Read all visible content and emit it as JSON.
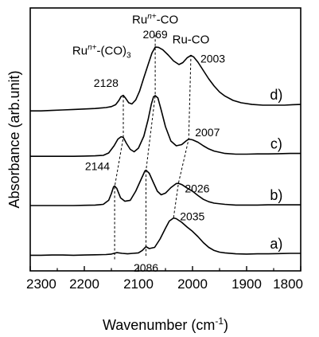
{
  "chart_data": {
    "type": "line",
    "xlabel": "Wavenumber (cm",
    "xlabel_sup": "-1",
    "xlabel_suffix": ")",
    "ylabel": "Absorbance (arb.unit)",
    "xlim": [
      2300,
      1800
    ],
    "ylim": [
      0,
      1
    ],
    "x_reversed": true,
    "yticks_shown": false,
    "xticks": [
      2300,
      2200,
      2100,
      2000,
      1900,
      1800
    ],
    "xtick_labels": [
      "2300",
      "2200",
      "2100",
      "2000",
      "1900",
      "1800"
    ],
    "series": [
      {
        "name": "a)",
        "points": [
          [
            2300,
            0.032
          ],
          [
            2280,
            0.032
          ],
          [
            2260,
            0.033
          ],
          [
            2240,
            0.033
          ],
          [
            2220,
            0.032
          ],
          [
            2200,
            0.033
          ],
          [
            2180,
            0.034
          ],
          [
            2160,
            0.035
          ],
          [
            2150,
            0.037
          ],
          [
            2140,
            0.043
          ],
          [
            2130,
            0.04
          ],
          [
            2120,
            0.038
          ],
          [
            2110,
            0.04
          ],
          [
            2100,
            0.042
          ],
          [
            2093,
            0.052
          ],
          [
            2086,
            0.068
          ],
          [
            2080,
            0.06
          ],
          [
            2070,
            0.065
          ],
          [
            2060,
            0.1
          ],
          [
            2050,
            0.145
          ],
          [
            2043,
            0.175
          ],
          [
            2035,
            0.188
          ],
          [
            2030,
            0.185
          ],
          [
            2020,
            0.17
          ],
          [
            2010,
            0.15
          ],
          [
            2000,
            0.132
          ],
          [
            1990,
            0.11
          ],
          [
            1980,
            0.085
          ],
          [
            1970,
            0.065
          ],
          [
            1960,
            0.052
          ],
          [
            1950,
            0.045
          ],
          [
            1940,
            0.042
          ],
          [
            1920,
            0.038
          ],
          [
            1900,
            0.037
          ],
          [
            1880,
            0.038
          ],
          [
            1860,
            0.038
          ],
          [
            1840,
            0.039
          ],
          [
            1820,
            0.04
          ],
          [
            1800,
            0.04
          ]
        ]
      },
      {
        "name": "b)",
        "points": [
          [
            2300,
            0.24
          ],
          [
            2280,
            0.24
          ],
          [
            2260,
            0.24
          ],
          [
            2240,
            0.24
          ],
          [
            2220,
            0.24
          ],
          [
            2200,
            0.241
          ],
          [
            2180,
            0.242
          ],
          [
            2165,
            0.245
          ],
          [
            2155,
            0.262
          ],
          [
            2150,
            0.29
          ],
          [
            2146,
            0.318
          ],
          [
            2144,
            0.322
          ],
          [
            2140,
            0.312
          ],
          [
            2133,
            0.272
          ],
          [
            2125,
            0.258
          ],
          [
            2115,
            0.262
          ],
          [
            2105,
            0.3
          ],
          [
            2095,
            0.35
          ],
          [
            2088,
            0.385
          ],
          [
            2086,
            0.388
          ],
          [
            2080,
            0.375
          ],
          [
            2072,
            0.335
          ],
          [
            2065,
            0.3
          ],
          [
            2058,
            0.285
          ],
          [
            2050,
            0.292
          ],
          [
            2040,
            0.315
          ],
          [
            2030,
            0.332
          ],
          [
            2026,
            0.333
          ],
          [
            2020,
            0.328
          ],
          [
            2010,
            0.313
          ],
          [
            2000,
            0.3
          ],
          [
            1990,
            0.282
          ],
          [
            1980,
            0.266
          ],
          [
            1970,
            0.256
          ],
          [
            1960,
            0.25
          ],
          [
            1940,
            0.245
          ],
          [
            1920,
            0.242
          ],
          [
            1900,
            0.242
          ],
          [
            1880,
            0.242
          ],
          [
            1860,
            0.243
          ],
          [
            1840,
            0.243
          ],
          [
            1820,
            0.243
          ],
          [
            1800,
            0.243
          ]
        ]
      },
      {
        "name": "c)",
        "points": [
          [
            2300,
            0.446
          ],
          [
            2280,
            0.446
          ],
          [
            2260,
            0.446
          ],
          [
            2240,
            0.446
          ],
          [
            2220,
            0.446
          ],
          [
            2200,
            0.447
          ],
          [
            2180,
            0.448
          ],
          [
            2165,
            0.45
          ],
          [
            2155,
            0.46
          ],
          [
            2145,
            0.49
          ],
          [
            2138,
            0.518
          ],
          [
            2132,
            0.528
          ],
          [
            2128,
            0.525
          ],
          [
            2122,
            0.5
          ],
          [
            2115,
            0.475
          ],
          [
            2108,
            0.465
          ],
          [
            2100,
            0.48
          ],
          [
            2090,
            0.53
          ],
          [
            2082,
            0.6
          ],
          [
            2076,
            0.665
          ],
          [
            2072,
            0.695
          ],
          [
            2069,
            0.7
          ],
          [
            2064,
            0.69
          ],
          [
            2058,
            0.64
          ],
          [
            2050,
            0.57
          ],
          [
            2040,
            0.51
          ],
          [
            2030,
            0.49
          ],
          [
            2020,
            0.495
          ],
          [
            2012,
            0.51
          ],
          [
            2007,
            0.518
          ],
          [
            2000,
            0.515
          ],
          [
            1990,
            0.505
          ],
          [
            1980,
            0.49
          ],
          [
            1970,
            0.477
          ],
          [
            1960,
            0.468
          ],
          [
            1940,
            0.458
          ],
          [
            1920,
            0.455
          ],
          [
            1900,
            0.455
          ],
          [
            1880,
            0.456
          ],
          [
            1860,
            0.456
          ],
          [
            1840,
            0.457
          ],
          [
            1820,
            0.458
          ],
          [
            1800,
            0.458
          ]
        ]
      },
      {
        "name": "d)",
        "points": [
          [
            2300,
            0.636
          ],
          [
            2280,
            0.636
          ],
          [
            2260,
            0.638
          ],
          [
            2240,
            0.64
          ],
          [
            2220,
            0.642
          ],
          [
            2200,
            0.644
          ],
          [
            2180,
            0.646
          ],
          [
            2160,
            0.65
          ],
          [
            2150,
            0.654
          ],
          [
            2142,
            0.662
          ],
          [
            2136,
            0.68
          ],
          [
            2132,
            0.696
          ],
          [
            2128,
            0.701
          ],
          [
            2124,
            0.69
          ],
          [
            2118,
            0.67
          ],
          [
            2112,
            0.665
          ],
          [
            2105,
            0.682
          ],
          [
            2098,
            0.718
          ],
          [
            2090,
            0.775
          ],
          [
            2082,
            0.83
          ],
          [
            2075,
            0.878
          ],
          [
            2069,
            0.903
          ],
          [
            2063,
            0.902
          ],
          [
            2055,
            0.892
          ],
          [
            2045,
            0.87
          ],
          [
            2035,
            0.845
          ],
          [
            2025,
            0.83
          ],
          [
            2018,
            0.838
          ],
          [
            2010,
            0.858
          ],
          [
            2003,
            0.868
          ],
          [
            1998,
            0.862
          ],
          [
            1990,
            0.84
          ],
          [
            1980,
            0.805
          ],
          [
            1970,
            0.77
          ],
          [
            1960,
            0.74
          ],
          [
            1950,
            0.715
          ],
          [
            1940,
            0.698
          ],
          [
            1925,
            0.68
          ],
          [
            1910,
            0.67
          ],
          [
            1890,
            0.663
          ],
          [
            1870,
            0.66
          ],
          [
            1850,
            0.66
          ],
          [
            1830,
            0.66
          ],
          [
            1815,
            0.662
          ],
          [
            1800,
            0.663
          ]
        ]
      }
    ],
    "annotations": [
      {
        "text": "2144",
        "x": 2144,
        "level": 0.405,
        "anchor": "end",
        "dx": -6
      },
      {
        "text": "2086",
        "x": 2086,
        "level": -0.02,
        "anchor": "middle",
        "dx": 0
      },
      {
        "text": "2035",
        "x": 2035,
        "level": 0.195,
        "anchor": "start",
        "dx": 8
      },
      {
        "text": "2026",
        "x": 2026,
        "level": 0.312,
        "anchor": "start",
        "dx": 8
      },
      {
        "text": "2007",
        "x": 2007,
        "level": 0.547,
        "anchor": "start",
        "dx": 8
      },
      {
        "text": "2128",
        "x": 2128,
        "level": 0.754,
        "anchor": "end",
        "dx": -6
      },
      {
        "text": "2069",
        "x": 2069,
        "level": 0.957,
        "anchor": "middle",
        "dx": 0
      },
      {
        "text": "2003",
        "x": 2003,
        "level": 0.855,
        "anchor": "start",
        "dx": 12
      }
    ],
    "group_labels": [
      {
        "base": "Ru",
        "sup": "n+",
        "tail": "-CO",
        "x": 2069,
        "level": 1.002,
        "anchor": "middle"
      },
      {
        "base": "Ru-CO",
        "sup": "",
        "tail": "",
        "x": 2003,
        "level": 0.918,
        "anchor": "middle"
      },
      {
        "base": "Ru",
        "sup": "n+",
        "tail": "-(CO)",
        "sub": "3",
        "x": 2168,
        "level": 0.872,
        "anchor": "middle"
      }
    ],
    "guide_lines": [
      {
        "points": [
          [
            2144,
            0.015
          ],
          [
            2144,
            0.318
          ],
          [
            2128,
            0.525
          ],
          [
            2128,
            0.7
          ]
        ]
      },
      {
        "points": [
          [
            2086,
            0.03
          ],
          [
            2086,
            0.385
          ],
          [
            2069,
            0.7
          ],
          [
            2069,
            0.955
          ]
        ]
      },
      {
        "points": [
          [
            2035,
            0.19
          ],
          [
            2026,
            0.333
          ],
          [
            2007,
            0.518
          ],
          [
            2003,
            0.868
          ]
        ]
      }
    ]
  }
}
